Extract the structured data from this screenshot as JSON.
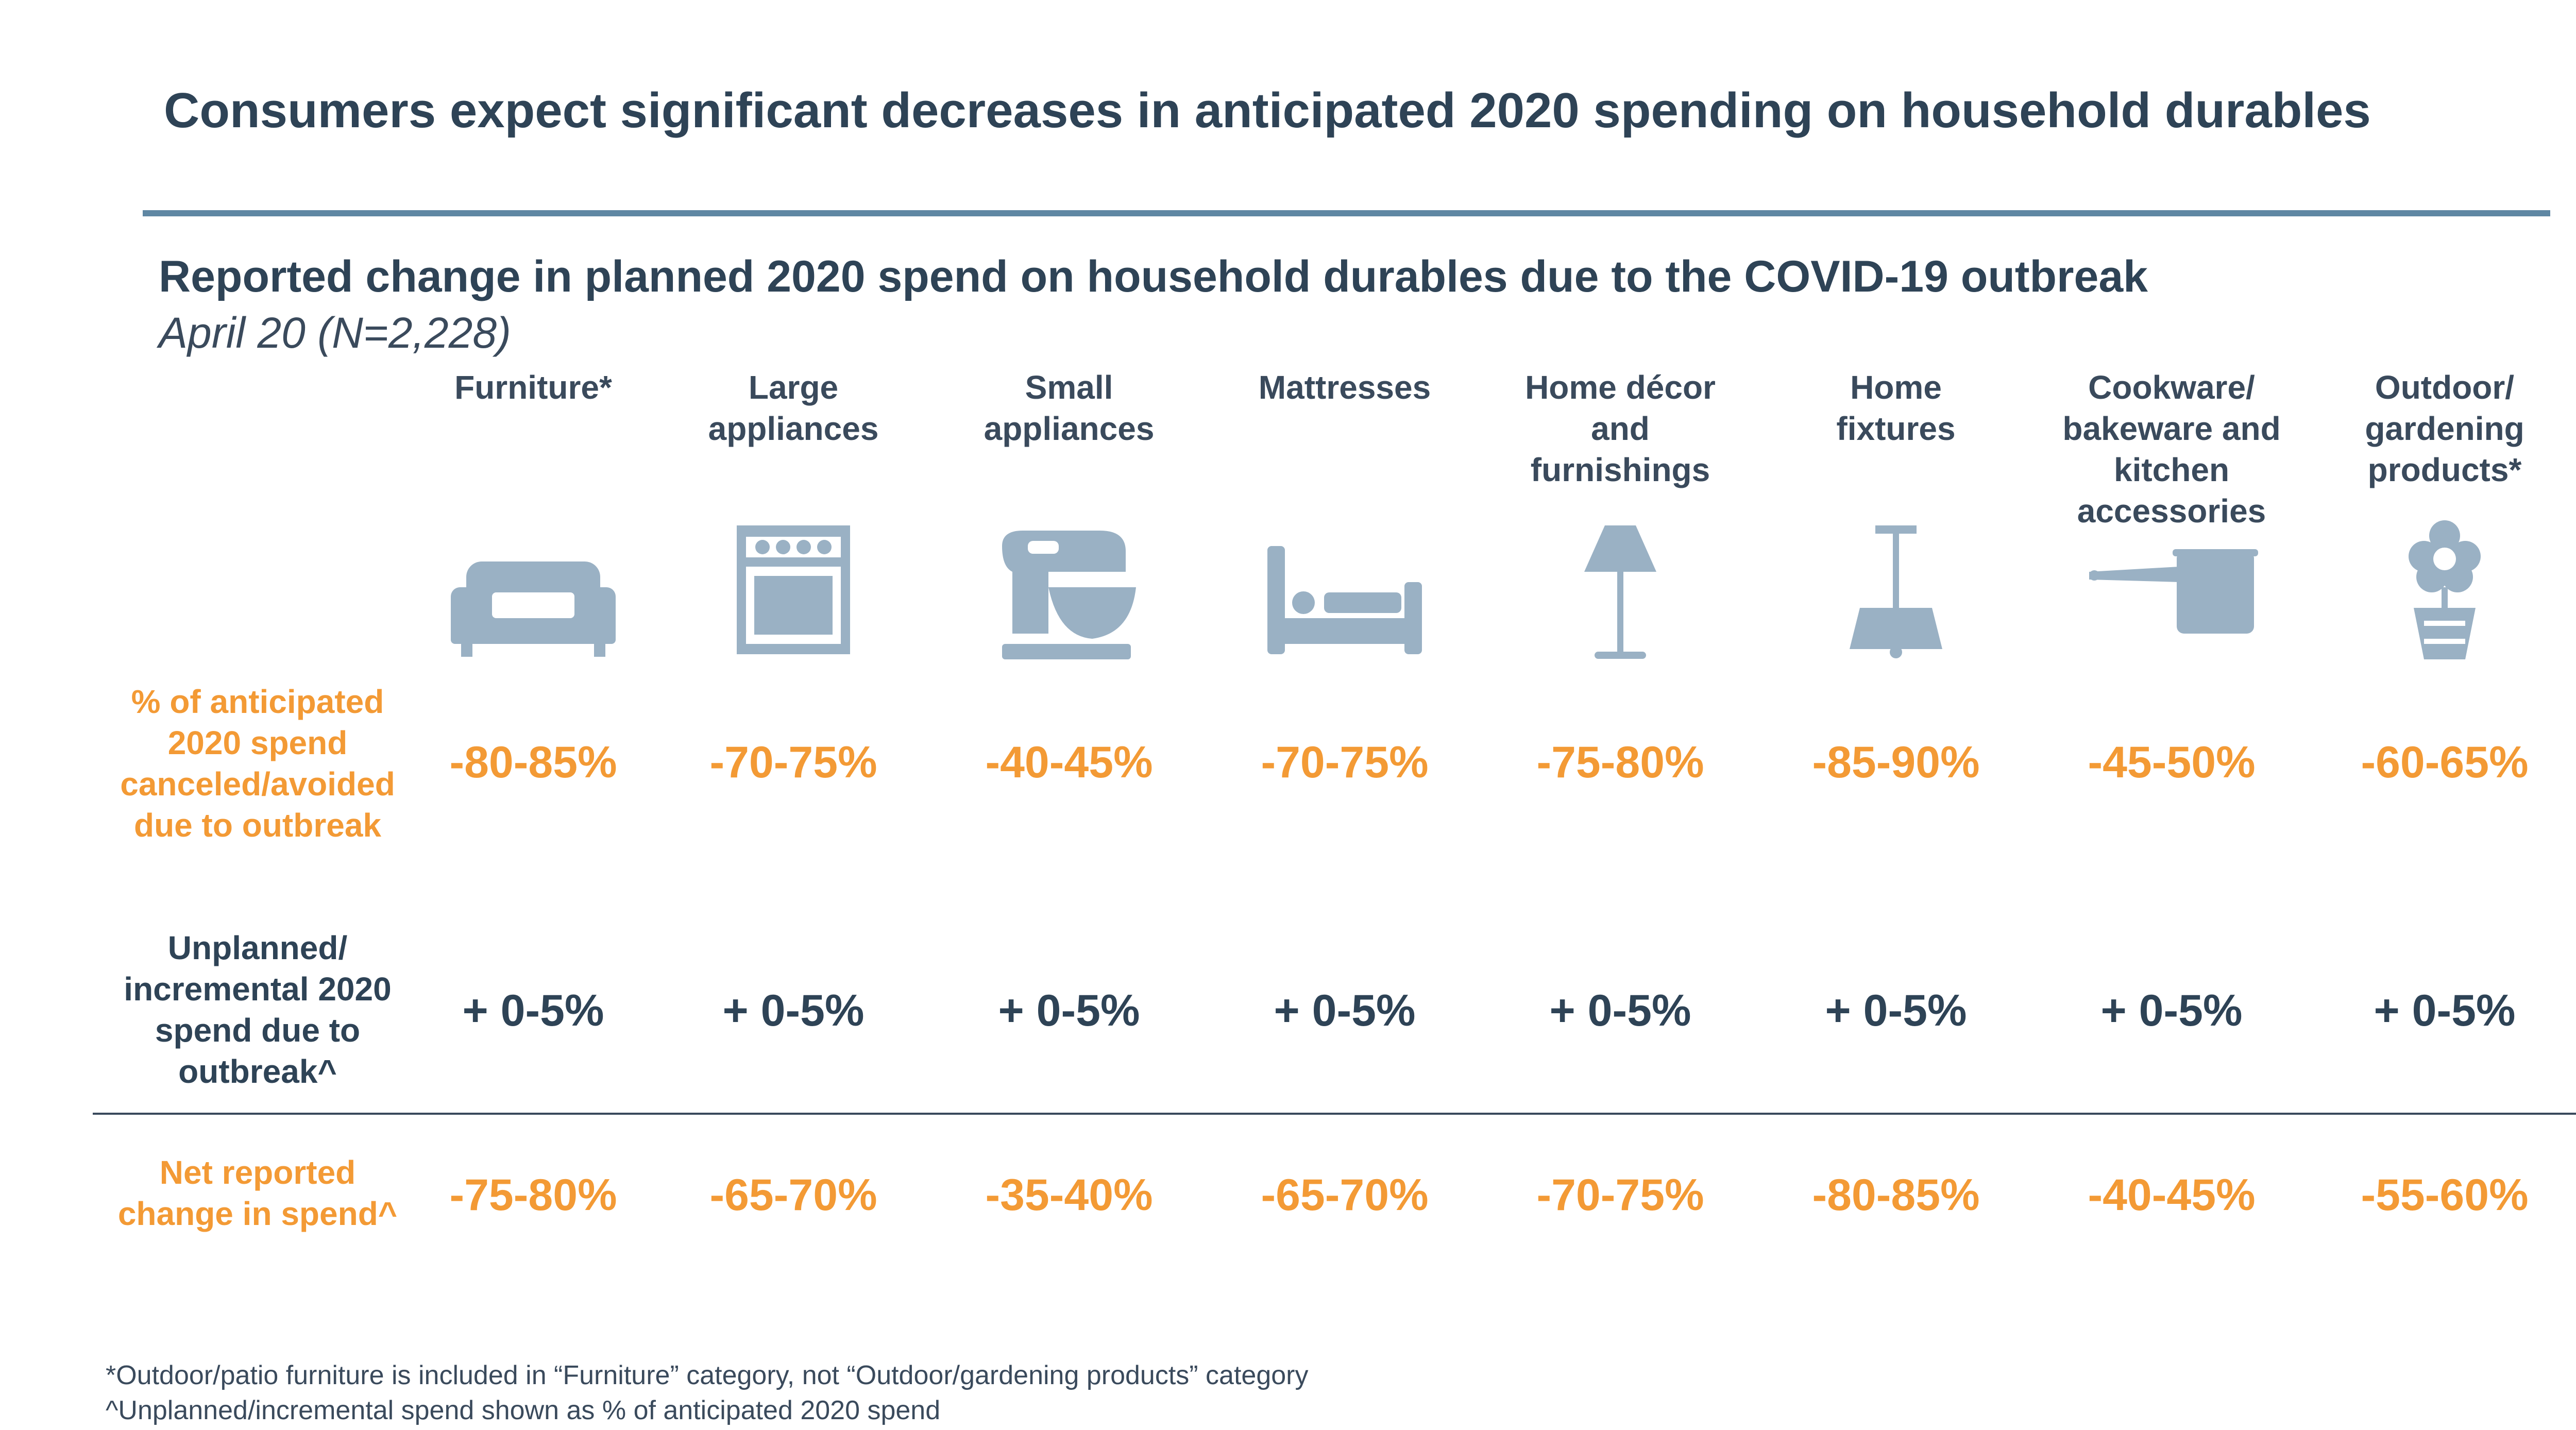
{
  "main_title": "Consumers expect significant decreases in anticipated 2020 spending on household durables",
  "subtitle": "Reported change in planned 2020 spend on household durables due to the COVID-19 outbreak",
  "date_line": "April 20 (N=2,228)",
  "colors": {
    "accent": "#f39a35",
    "text": "#2e4356",
    "icon": "#9ab1c4",
    "rule": "#5f87a3"
  },
  "row_labels": {
    "canceled": "% of anticipated\n2020 spend\ncanceled/avoided\ndue to outbreak",
    "unplanned": "Unplanned/\nincremental 2020\nspend due to\noutbreak^",
    "net": "Net reported\nchange in spend^"
  },
  "chart_data": {
    "type": "table",
    "categories": [
      {
        "label": "Furniture*",
        "icon": "sofa-icon"
      },
      {
        "label": "Large\nappliances",
        "icon": "oven-icon"
      },
      {
        "label": "Small\nappliances",
        "icon": "stand-mixer-icon"
      },
      {
        "label": "Mattresses",
        "icon": "bed-icon"
      },
      {
        "label": "Home décor\nand\nfurnishings",
        "icon": "floor-lamp-icon"
      },
      {
        "label": "Home\nfixtures",
        "icon": "ceiling-lamp-icon"
      },
      {
        "label": "Cookware/\nbakeware and\nkitchen\naccessories",
        "icon": "saucepan-icon"
      },
      {
        "label": "Outdoor/\ngardening\nproducts*",
        "icon": "potted-flower-icon"
      }
    ],
    "rows": {
      "canceled": [
        "-80-85%",
        "-70-75%",
        "-40-45%",
        "-70-75%",
        "-75-80%",
        "-85-90%",
        "-45-50%",
        "-60-65%"
      ],
      "unplanned": [
        "+ 0-5%",
        "+ 0-5%",
        "+ 0-5%",
        "+ 0-5%",
        "+ 0-5%",
        "+ 0-5%",
        "+ 0-5%",
        "+ 0-5%"
      ],
      "net": [
        "-75-80%",
        "-65-70%",
        "-35-40%",
        "-65-70%",
        "-70-75%",
        "-80-85%",
        "-40-45%",
        "-55-60%"
      ]
    }
  },
  "footnotes": [
    "*Outdoor/patio furniture is included in “Furniture” category, not “Outdoor/gardening products” category",
    "^Unplanned/incremental spend shown as % of anticipated 2020 spend"
  ]
}
